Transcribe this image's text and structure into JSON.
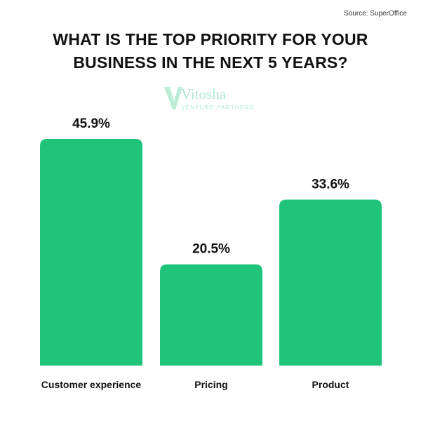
{
  "source": "Source: SuperOffice",
  "title": "WHAT IS THE TOP PRIORITY FOR YOUR\nBUSINESS IN THE NEXT 5 YEARS?",
  "watermark": {
    "name": "Vitosha",
    "subtitle": "VENTURE PARTNERS"
  },
  "colors": {
    "bar": "#1fc47a",
    "text": "#111111"
  },
  "chart_data": {
    "type": "bar",
    "categories": [
      "Customer experience",
      "Pricing",
      "Product"
    ],
    "values": [
      45.9,
      20.5,
      33.6
    ],
    "value_labels": [
      "45.9%",
      "20.5%",
      "33.6%"
    ],
    "title": "WHAT IS THE TOP PRIORITY FOR YOUR BUSINESS IN THE NEXT 5 YEARS?",
    "xlabel": "",
    "ylabel": "",
    "ylim": [
      0,
      45.9
    ],
    "grid": false,
    "legend": "none"
  }
}
